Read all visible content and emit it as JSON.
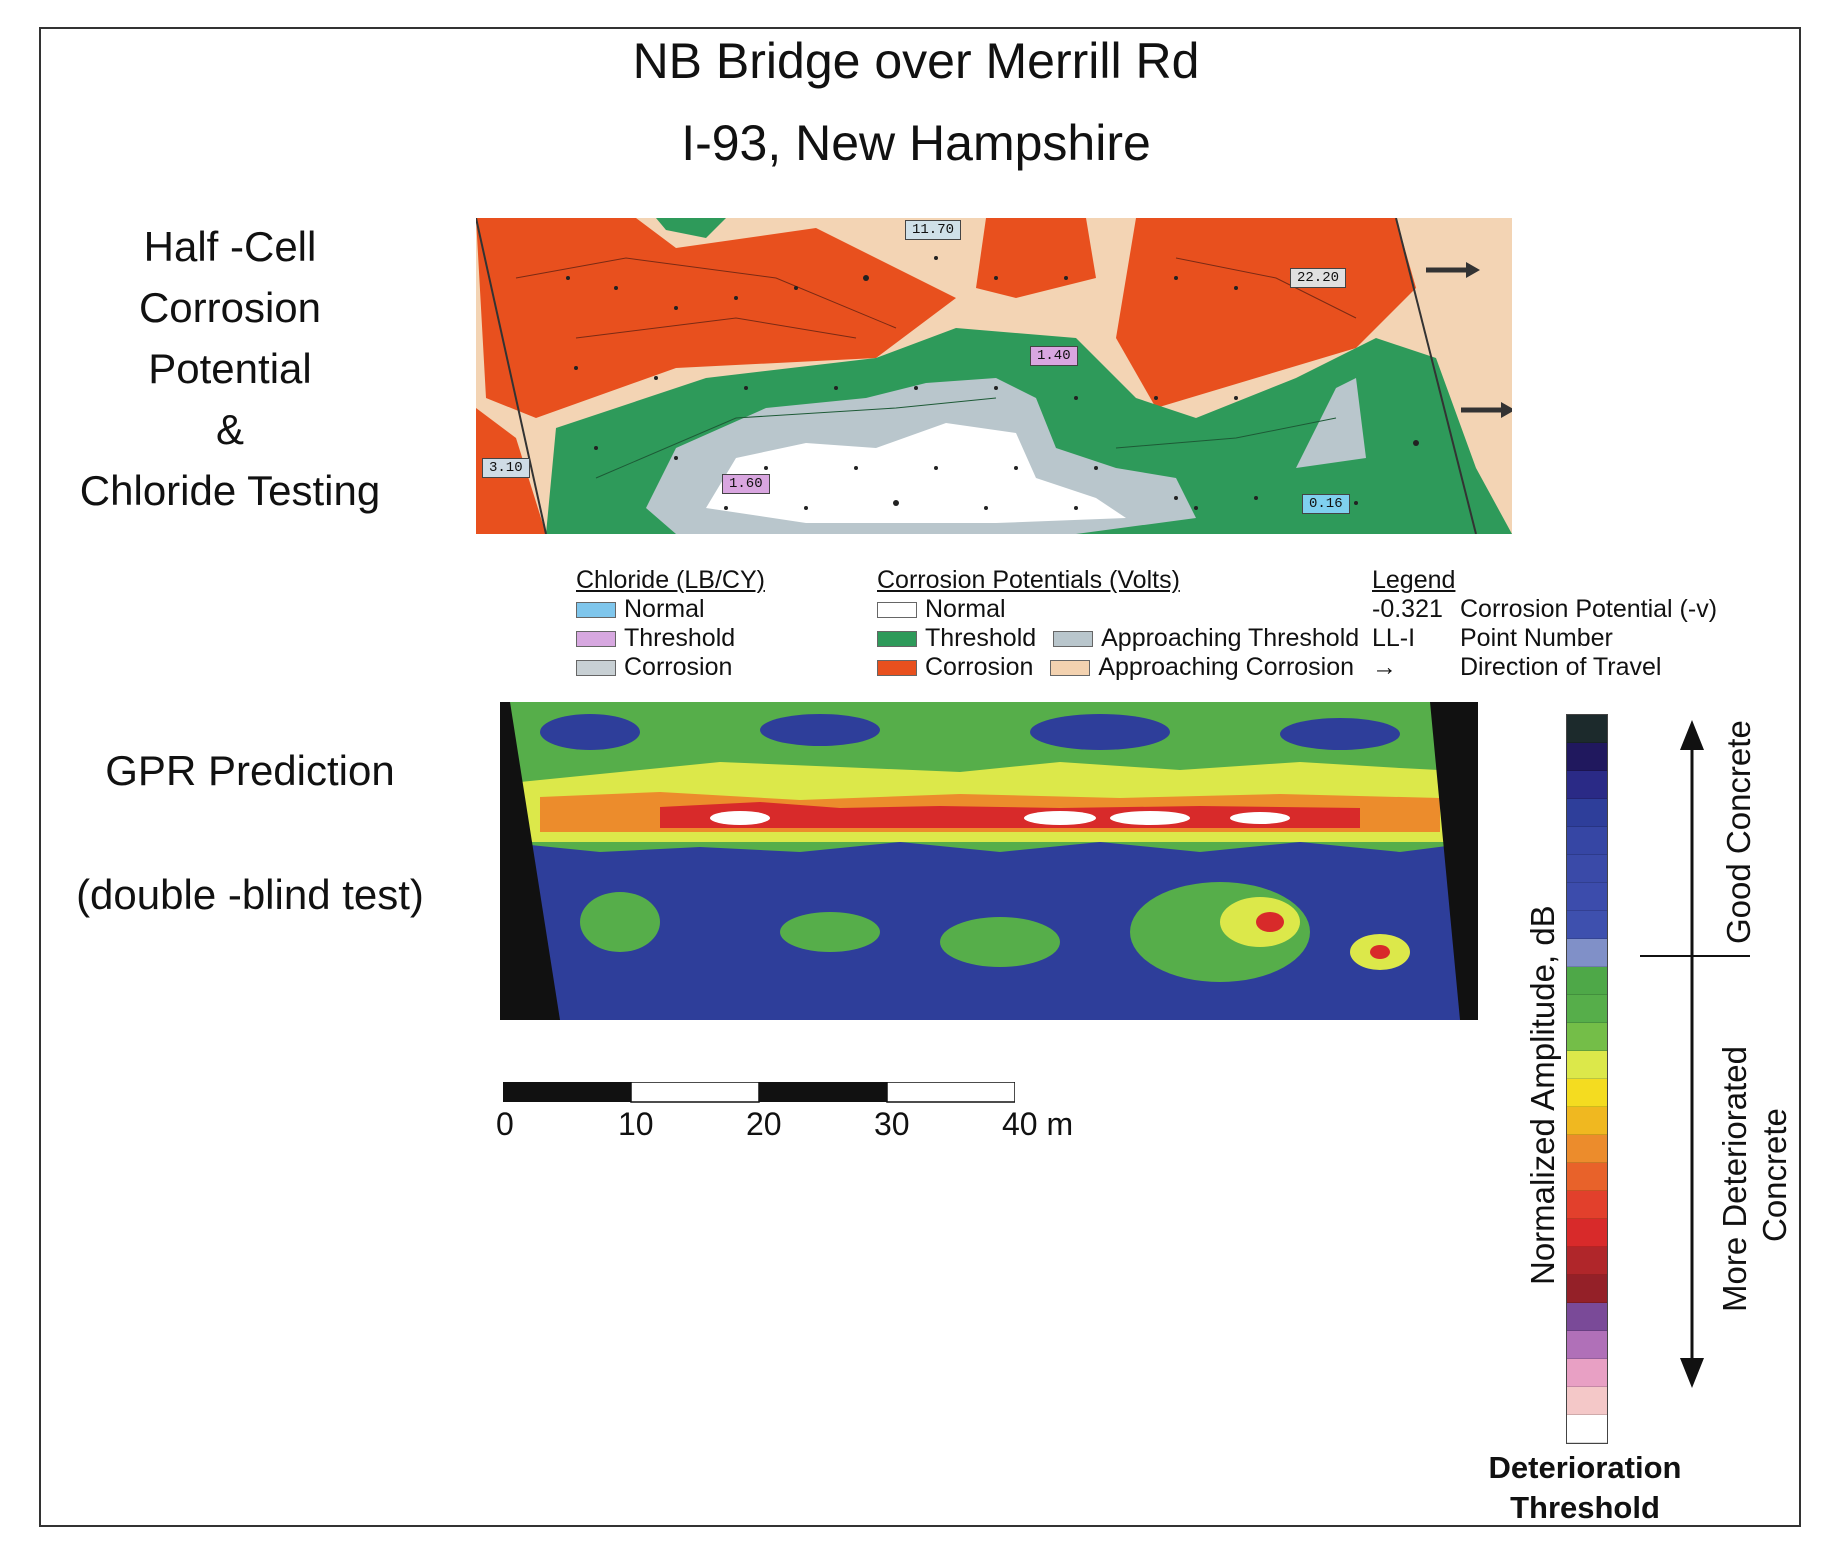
{
  "title": {
    "line1": "NB Bridge over Merrill Rd",
    "line2": "I-93, New Hampshire"
  },
  "sections": {
    "halfcell": [
      "Half -Cell",
      "Corrosion",
      "Potential",
      "&",
      "Chloride Testing"
    ],
    "gpr": "GPR Prediction",
    "blind": "(double -blind test)"
  },
  "map_tags": [
    {
      "text": "11.70",
      "color": "#cfe0e8"
    },
    {
      "text": "22.20",
      "color": "#e0e0e0"
    },
    {
      "text": "1.40",
      "color": "#d9a6e0"
    },
    {
      "text": "3.10",
      "color": "#cfdce6"
    },
    {
      "text": "1.60",
      "color": "#d9a6e0"
    },
    {
      "text": "0.16",
      "color": "#7fd0ef"
    }
  ],
  "legend": {
    "chloride": {
      "header": "Chloride (LB/CY)",
      "items": [
        {
          "label": "Normal",
          "color": "#7fc6ec"
        },
        {
          "label": "Threshold",
          "color": "#d7a8e0"
        },
        {
          "label": "Corrosion",
          "color": "#c8d0d4"
        }
      ]
    },
    "corrosion": {
      "header": "Corrosion Potentials (Volts)",
      "items": [
        {
          "label": "Normal",
          "color": "#ffffff"
        },
        {
          "label": "Threshold",
          "color": "#2e9a5a"
        },
        {
          "label": "Corrosion",
          "color": "#e8501e"
        },
        {
          "label": "Approaching Threshold",
          "color": "#b9c6cc"
        },
        {
          "label": "Approaching Corrosion",
          "color": "#f3d2b0"
        }
      ]
    },
    "key": {
      "header": "Legend",
      "rows": [
        {
          "code": "-0.321",
          "desc": "Corrosion Potential (-v)"
        },
        {
          "code": "LL-I",
          "desc": "Point Number"
        },
        {
          "code": "→",
          "desc": "Direction of Travel"
        }
      ]
    }
  },
  "scale_bar": {
    "ticks": [
      "0",
      "10",
      "20",
      "30",
      "40 m"
    ]
  },
  "colorbar": {
    "axis_label": "Normalized Amplitude, dB",
    "good_label": "Good Concrete",
    "bad_label_1": "More Deteriorated",
    "bad_label_2": "Concrete",
    "threshold_1": "Deterioration",
    "threshold_2": "Threshold",
    "colors": [
      "#1c2a2c",
      "#20185e",
      "#2a2a86",
      "#2e3e9a",
      "#3646a4",
      "#3a4aa8",
      "#3c4cac",
      "#3e50ae",
      "#8090c8",
      "#4ea848",
      "#56ae4a",
      "#74be48",
      "#dce84a",
      "#f4dc20",
      "#f0b820",
      "#ec8c2c",
      "#e8622a",
      "#e2402c",
      "#d82a2a",
      "#b0262a",
      "#942028",
      "#7a4a98",
      "#b070b8",
      "#e8a0c4",
      "#f4c8c8",
      "#ffffff"
    ]
  }
}
